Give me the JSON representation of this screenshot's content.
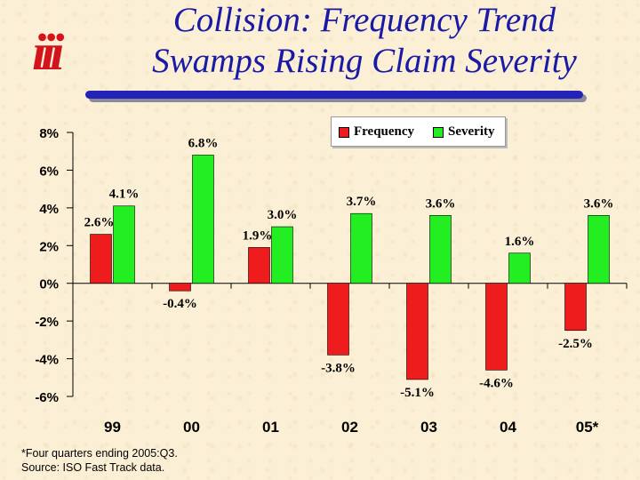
{
  "slide": {
    "logo_text": "iii",
    "title_line1": "Collision: Frequency Trend",
    "title_line2": "Swamps Rising Claim Severity",
    "footnote_line1": "*Four quarters ending 2005:Q3.",
    "footnote_line2": "Source: ISO Fast Track data."
  },
  "colors": {
    "frequency": "#ee1c1c",
    "severity": "#22ee22",
    "title": "#1a1aa6",
    "logo": "#d4141c"
  },
  "chart_data": {
    "type": "bar",
    "title": "",
    "xlabel": "",
    "ylabel": "",
    "categories": [
      "99",
      "00",
      "01",
      "02",
      "03",
      "04",
      "05*"
    ],
    "series": [
      {
        "name": "Frequency",
        "values": [
          2.6,
          -0.4,
          1.9,
          -3.8,
          -5.1,
          -4.6,
          -2.5
        ],
        "labels": [
          "2.6%",
          "-0.4%",
          "1.9%",
          "-3.8%",
          "-5.1%",
          "-4.6%",
          "-2.5%"
        ]
      },
      {
        "name": "Severity",
        "values": [
          4.1,
          6.8,
          3.0,
          3.7,
          3.6,
          1.6,
          3.6
        ],
        "labels": [
          "4.1%",
          "6.8%",
          "3.0%",
          "3.7%",
          "3.6%",
          "1.6%",
          "3.6%"
        ]
      }
    ],
    "ylim": [
      -6,
      8
    ],
    "yticks": [
      8,
      6,
      4,
      2,
      0,
      -2,
      -4,
      -6
    ],
    "ytick_labels": [
      "8%",
      "6%",
      "4%",
      "2%",
      "0%",
      "-2%",
      "-4%",
      "-6%"
    ],
    "grid": false,
    "legend_position": "top-right"
  }
}
